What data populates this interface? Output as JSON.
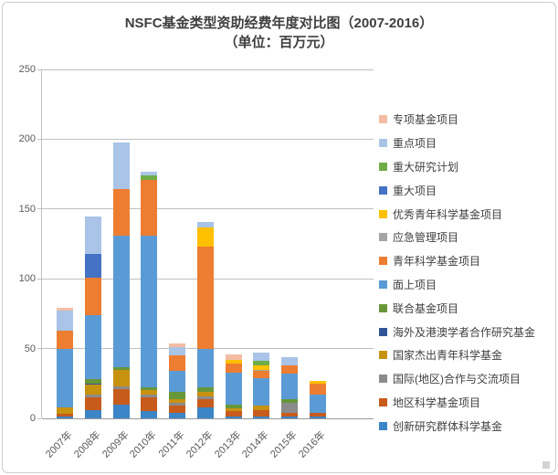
{
  "title": {
    "line1": "NSFC基金类型资助经费年度对比图（2007-2016）",
    "line2": "（单位：百万元）"
  },
  "y_axis": {
    "ticks": [
      0,
      50,
      100,
      150,
      200,
      250
    ],
    "max": 250
  },
  "x_axis": {
    "labels": [
      "2007年",
      "2008年",
      "2009年",
      "2010年",
      "2011年",
      "2012年",
      "2013年",
      "2014年",
      "2015年",
      "2016年"
    ]
  },
  "legend_position": "right",
  "chart_data": {
    "type": "bar",
    "stacked": true,
    "title": "NSFC基金类型资助经费年度对比图（2007-2016）",
    "subtitle": "（单位：百万元）",
    "unit": "百万元",
    "ylim": [
      0,
      250
    ],
    "grid": true,
    "legend_position": "right",
    "categories": [
      "2007年",
      "2008年",
      "2009年",
      "2010年",
      "2011年",
      "2012年",
      "2013年",
      "2014年",
      "2015年",
      "2016年"
    ],
    "series": [
      {
        "name": "创新研究群体科学基金",
        "color": "#3c85c6",
        "values": [
          1,
          6,
          10,
          5,
          4,
          8,
          1,
          1,
          1,
          1
        ]
      },
      {
        "name": "地区科学基金项目",
        "color": "#c75b1c",
        "values": [
          2,
          9,
          11,
          10,
          5,
          6,
          4,
          5,
          3,
          3
        ]
      },
      {
        "name": "国际(地区)合作与交流项目",
        "color": "#8b8b8b",
        "values": [
          0,
          2,
          2,
          2,
          2,
          2,
          0,
          0,
          7,
          0
        ]
      },
      {
        "name": "国家杰出青年科学基金",
        "color": "#c89211",
        "values": [
          5,
          7,
          12,
          3,
          3,
          3,
          2,
          3,
          0,
          0
        ]
      },
      {
        "name": "海外及港澳学者合作研究基金",
        "color": "#2f5597",
        "values": [
          0,
          1,
          0,
          0,
          0,
          0,
          0,
          0,
          0,
          0
        ]
      },
      {
        "name": "联合基金项目",
        "color": "#67973a",
        "values": [
          0,
          3,
          2,
          2,
          5,
          3,
          3,
          0,
          3,
          0
        ]
      },
      {
        "name": "面上项目",
        "color": "#5b9bd5",
        "values": [
          42,
          46,
          94,
          109,
          15,
          28,
          23,
          20,
          18,
          13
        ]
      },
      {
        "name": "青年科学基金项目",
        "color": "#ed7d31",
        "values": [
          13,
          27,
          33,
          40,
          11,
          73,
          6,
          5,
          6,
          8
        ]
      },
      {
        "name": "应急管理项目",
        "color": "#a5a5a5",
        "values": [
          0,
          0,
          0,
          0,
          0,
          0,
          0,
          1,
          0,
          0
        ]
      },
      {
        "name": "优秀青年科学基金项目",
        "color": "#ffc000",
        "values": [
          0,
          0,
          0,
          0,
          0,
          14,
          3,
          3,
          0,
          2
        ]
      },
      {
        "name": "重大项目",
        "color": "#4472c4",
        "values": [
          0,
          17,
          0,
          0,
          0,
          0,
          0,
          0,
          0,
          0
        ]
      },
      {
        "name": "重大研究计划",
        "color": "#70ad47",
        "values": [
          0,
          0,
          0,
          3,
          0,
          0,
          0,
          3,
          0,
          0
        ]
      },
      {
        "name": "重点项目",
        "color": "#a9c4e6",
        "values": [
          14,
          27,
          34,
          3,
          6,
          4,
          0,
          6,
          6,
          0
        ]
      },
      {
        "name": "专项基金项目",
        "color": "#f3bda4",
        "values": [
          2,
          0,
          0,
          0,
          3,
          0,
          4,
          0,
          0,
          0
        ]
      }
    ]
  }
}
